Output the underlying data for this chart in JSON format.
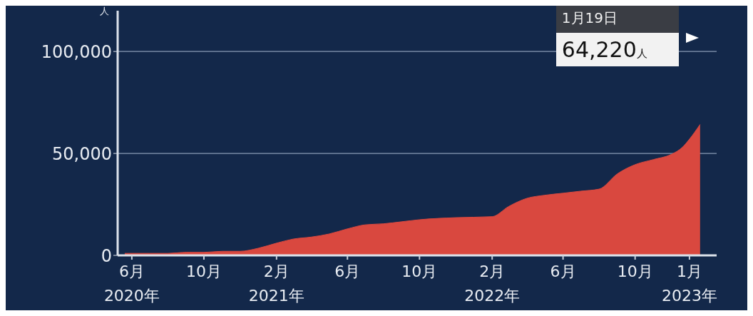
{
  "chart_data": {
    "type": "area",
    "ylabel": "人",
    "x": [
      "2020-05-20",
      "2020-07-01",
      "2020-08-01",
      "2020-09-01",
      "2020-10-01",
      "2020-11-01",
      "2020-12-01",
      "2021-01-01",
      "2021-02-01",
      "2021-03-01",
      "2021-04-01",
      "2021-05-01",
      "2021-06-01",
      "2021-07-01",
      "2021-08-01",
      "2021-09-01",
      "2021-10-01",
      "2021-12-01",
      "2022-02-01",
      "2022-03-01",
      "2022-04-01",
      "2022-05-01",
      "2022-06-01",
      "2022-07-01",
      "2022-08-01",
      "2022-09-01",
      "2022-10-01",
      "2022-11-01",
      "2022-12-01",
      "2022-12-20",
      "2023-01-01",
      "2023-01-19"
    ],
    "series": [
      {
        "color": "#d9483f",
        "values": [
          1000,
          1000,
          1000,
          1500,
          1500,
          2000,
          2000,
          3500,
          6000,
          8000,
          9000,
          10500,
          13000,
          15000,
          15500,
          16500,
          17500,
          18500,
          19000,
          24000,
          28000,
          29500,
          30500,
          31500,
          32500,
          40000,
          44500,
          47000,
          49500,
          53000,
          57000,
          64220
        ]
      }
    ],
    "xlim": [
      "2020-05-08",
      "2023-02-16"
    ],
    "xticks": [
      {
        "value": "2020-06",
        "label": "6月\n2020年"
      },
      {
        "value": "2020-10",
        "label": "10月"
      },
      {
        "value": "2021-02",
        "label": "2月\n2021年"
      },
      {
        "value": "2021-06",
        "label": "6月"
      },
      {
        "value": "2021-10",
        "label": "10月"
      },
      {
        "value": "2022-02",
        "label": "2月\n2022年"
      },
      {
        "value": "2022-06",
        "label": "6月"
      },
      {
        "value": "2022-10",
        "label": "10月"
      },
      {
        "value": "2023-01",
        "label": "1月\n2023年"
      }
    ],
    "ylim": [
      0,
      120000
    ],
    "yticks": [
      0,
      {
        "value": 50000,
        "label": "50,000"
      },
      {
        "value": 100000,
        "label": "100,000"
      }
    ],
    "grid": "y",
    "annotations": [
      "1月19日",
      "64,220人"
    ]
  }
}
